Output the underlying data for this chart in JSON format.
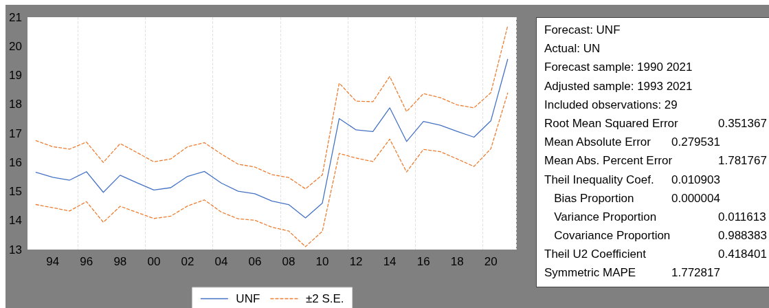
{
  "chart_data": {
    "type": "line",
    "categories": [
      null,
      "94",
      null,
      "96",
      null,
      "98",
      null,
      "00",
      null,
      "02",
      null,
      "04",
      null,
      "06",
      null,
      "08",
      null,
      "10",
      null,
      "12",
      null,
      "14",
      null,
      "16",
      null,
      "18",
      null,
      "20",
      null
    ],
    "series": [
      {
        "name": "UNF",
        "color": "#4472c4",
        "line_style": "solid",
        "values": [
          15.66,
          15.49,
          15.39,
          15.68,
          14.97,
          15.56,
          15.3,
          15.05,
          15.13,
          15.52,
          15.69,
          15.29,
          15.01,
          14.92,
          14.67,
          14.55,
          14.09,
          14.6,
          17.51,
          17.12,
          17.06,
          17.88,
          16.72,
          17.41,
          17.28,
          17.07,
          16.87,
          17.43,
          19.55
        ]
      },
      {
        "name": "±2 S.E.",
        "color": "#ed7d31",
        "line_style": "dashed",
        "values": [
          16.75,
          16.54,
          16.46,
          16.7,
          16.0,
          16.65,
          16.34,
          16.02,
          16.12,
          16.54,
          16.68,
          16.29,
          15.94,
          15.84,
          15.58,
          15.48,
          15.09,
          15.57,
          18.73,
          18.11,
          18.09,
          18.96,
          17.75,
          18.37,
          18.23,
          17.98,
          17.88,
          18.4,
          20.7
        ]
      },
      {
        "color": "#ed7d31",
        "line_style": "dashed",
        "values": [
          14.55,
          14.44,
          14.33,
          14.65,
          13.94,
          14.49,
          14.28,
          14.07,
          14.15,
          14.5,
          14.71,
          14.29,
          14.06,
          14.01,
          13.77,
          13.64,
          13.1,
          13.63,
          16.31,
          16.15,
          16.03,
          16.8,
          15.67,
          16.45,
          16.37,
          16.12,
          15.86,
          16.47,
          18.39
        ]
      }
    ],
    "ylim": [
      13,
      21
    ],
    "yticks": [
      13,
      14,
      15,
      16,
      17,
      18,
      19,
      20,
      21
    ],
    "grid": "x",
    "legend": "bottom",
    "annotations": [
      "Forecast: UNF",
      "Actual: UN",
      "Forecast sample: 1990 2021",
      "Adjusted sample: 1993 2021",
      "Included observations: 29",
      "Root Mean Squared Error\t\t0.351367",
      "Mean Absolute Error\t0.279531",
      "Mean Abs. Percent Error\t\t1.781767",
      "Theil Inequality Coef.\t0.010903",
      "   Bias Proportion\t0.000004",
      "   Variance Proportion\t\t0.011613",
      "   Covariance Proportion\t\t0.988383",
      "Theil U2 Coefficient\t\t0.418401",
      "Symmetric MAPE\t1.772817"
    ]
  }
}
